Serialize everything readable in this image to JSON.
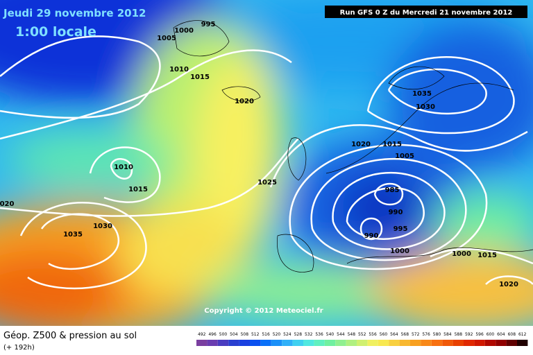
{
  "header": {
    "valid_date": "Jeudi 29 novembre 2012",
    "local_time": "1:00 locale",
    "run": "Run GFS 0 Z du Mercredi 21 novembre 2012"
  },
  "copyright": "Copyright © 2012 Meteociel.fr",
  "footer": {
    "title": "Géop. Z500 & pression au sol",
    "lead": "(+ 192h)"
  },
  "isobar_labels": [
    "1000",
    "995",
    "1005",
    "1010",
    "1015",
    "1020",
    "1010",
    "1015",
    "1030",
    "1035",
    "1025",
    "1020",
    "1015",
    "1005",
    "1035",
    "1030",
    "985",
    "990",
    "995",
    "990",
    "1000",
    "1000",
    "1015",
    "1020",
    "020"
  ],
  "scale": {
    "labels": [
      492,
      496,
      500,
      504,
      508,
      512,
      516,
      520,
      524,
      528,
      532,
      536,
      540,
      544,
      548,
      552,
      556,
      560,
      564,
      568,
      572,
      576,
      580,
      584,
      588,
      592,
      596,
      600,
      604,
      608,
      612
    ],
    "colors": [
      "#7a3fa0",
      "#6a3db0",
      "#4a3cc0",
      "#2a3fd0",
      "#1a40e0",
      "#0a50f0",
      "#0a70f8",
      "#1a90f8",
      "#30b0f8",
      "#40d0f0",
      "#50e8e0",
      "#60f0c0",
      "#70f0a0",
      "#90f090",
      "#b0f080",
      "#d0f070",
      "#f0f060",
      "#f8e850",
      "#f8d040",
      "#f8b830",
      "#f8a020",
      "#f88818",
      "#f87010",
      "#f05808",
      "#e84000",
      "#e02800",
      "#d01800",
      "#b00800",
      "#900000",
      "#600000",
      "#200000"
    ]
  }
}
